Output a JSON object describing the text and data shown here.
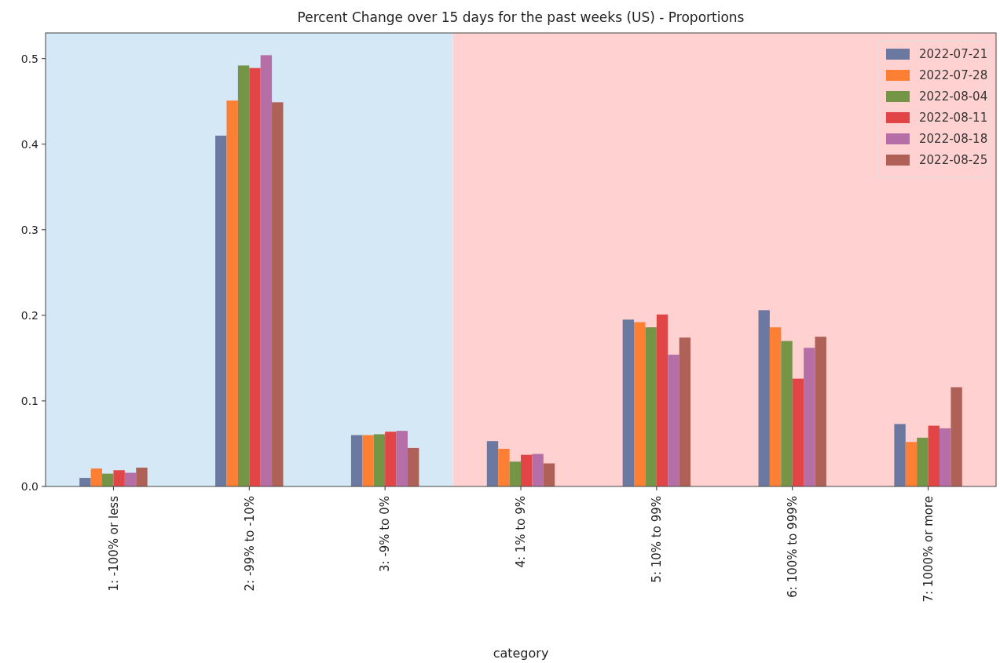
{
  "chart_data": {
    "type": "bar",
    "title": "Percent Change over 15 days for the past weeks (US) - Proportions",
    "xlabel": "category",
    "categories": [
      "1: -100% or less",
      "2: -99% to -10%",
      "3: -9% to 0%",
      "4: 1% to 9%",
      "5: 10% to 99%",
      "6: 100% to 999%",
      "7: 1000% or more"
    ],
    "series": [
      {
        "name": "2022-07-21",
        "color": "#6b79a0",
        "values": [
          0.01,
          0.41,
          0.06,
          0.053,
          0.195,
          0.206,
          0.073
        ]
      },
      {
        "name": "2022-07-28",
        "color": "#fd7f33",
        "values": [
          0.021,
          0.451,
          0.06,
          0.044,
          0.192,
          0.186,
          0.052
        ]
      },
      {
        "name": "2022-08-04",
        "color": "#749446",
        "values": [
          0.015,
          0.492,
          0.061,
          0.029,
          0.186,
          0.17,
          0.057
        ]
      },
      {
        "name": "2022-08-11",
        "color": "#e24545",
        "values": [
          0.019,
          0.489,
          0.064,
          0.037,
          0.201,
          0.126,
          0.071
        ]
      },
      {
        "name": "2022-08-18",
        "color": "#b56ea6",
        "values": [
          0.016,
          0.504,
          0.065,
          0.038,
          0.154,
          0.162,
          0.068
        ]
      },
      {
        "name": "2022-08-25",
        "color": "#b06157",
        "values": [
          0.022,
          0.449,
          0.045,
          0.027,
          0.174,
          0.175,
          0.116
        ]
      }
    ],
    "ylim": [
      0,
      0.53
    ],
    "yticks": [
      {
        "value": 0,
        "label": "0.0"
      },
      0.1,
      0.2,
      0.3,
      0.4,
      0.5
    ],
    "bands": [
      {
        "axis": "x",
        "from": "1: -100% or less",
        "to": "3: -9% to 0%",
        "color": "#d4e8f6"
      },
      {
        "axis": "x",
        "from": "4: 1% to 9%",
        "to": "7: 1000% or more",
        "color": "#ffd1d1"
      }
    ],
    "legend": "top right",
    "grid": false
  }
}
